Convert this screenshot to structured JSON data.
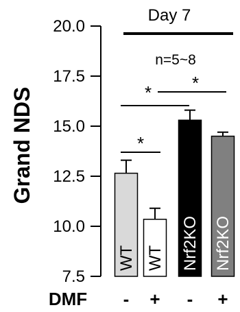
{
  "chart_data": {
    "type": "bar",
    "title": "Day 7",
    "ylabel": "Grand NDS",
    "ylim": [
      7.5,
      20.0
    ],
    "yticks": [
      "7.5",
      "10.0",
      "12.5",
      "15.0",
      "17.5",
      "20.0"
    ],
    "sample_note": "n=5~8",
    "categories": [
      "WT",
      "WT",
      "Nrf2KO",
      "Nrf2KO"
    ],
    "values": [
      12.65,
      10.35,
      15.3,
      14.5
    ],
    "errors": [
      0.65,
      0.55,
      0.5,
      0.2
    ],
    "bar_colors": [
      "#d9d9d9",
      "#ffffff",
      "#000000",
      "#808080"
    ],
    "label_colors": [
      "#000000",
      "#000000",
      "#ffffff",
      "#ffffff"
    ],
    "condition_label": "DMF",
    "dmf": [
      "-",
      "+",
      "-",
      "+"
    ],
    "significance": [
      {
        "from": 0,
        "to": 1,
        "label": "*"
      },
      {
        "from": 0,
        "to": 2,
        "label": "*"
      },
      {
        "from": 1,
        "to": 3,
        "label": "*"
      }
    ]
  }
}
